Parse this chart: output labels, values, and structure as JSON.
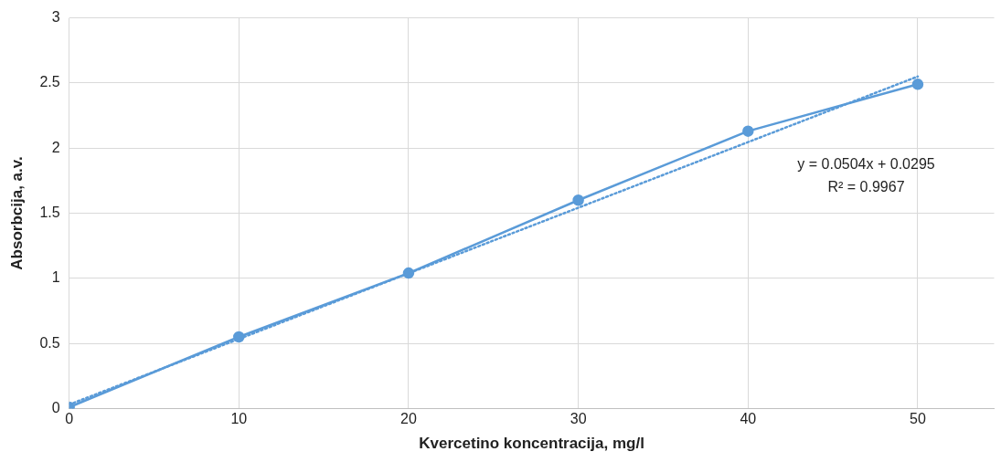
{
  "chart_data": {
    "type": "line",
    "xlabel": "Kvercetino koncentracija, mg/l",
    "ylabel": "Absorbcija, a.v.",
    "x": [
      0,
      10,
      20,
      30,
      40,
      50
    ],
    "series": [
      {
        "color": "#5a9bd8",
        "values": [
          0.01,
          0.55,
          1.04,
          1.6,
          2.13,
          2.49
        ]
      },
      {
        "type": "line",
        "color": "#5a9bd8",
        "x": [
          0,
          50
        ],
        "values": [
          0.03,
          2.55
        ],
        "marker": "none",
        "line_style": "dotted"
      }
    ],
    "xlim": [
      0,
      54.5
    ],
    "xticks": [
      0,
      10,
      20,
      30,
      40,
      50
    ],
    "ylim": [
      0,
      3
    ],
    "yticks": [
      0,
      0.5,
      1,
      1.5,
      2,
      2.5,
      3
    ],
    "grid": true,
    "legend": false,
    "marker": "circle",
    "line_style": "solid",
    "annotations": [
      "y = 0.0504x + 0.0295",
      "R² = 0.9967"
    ]
  }
}
